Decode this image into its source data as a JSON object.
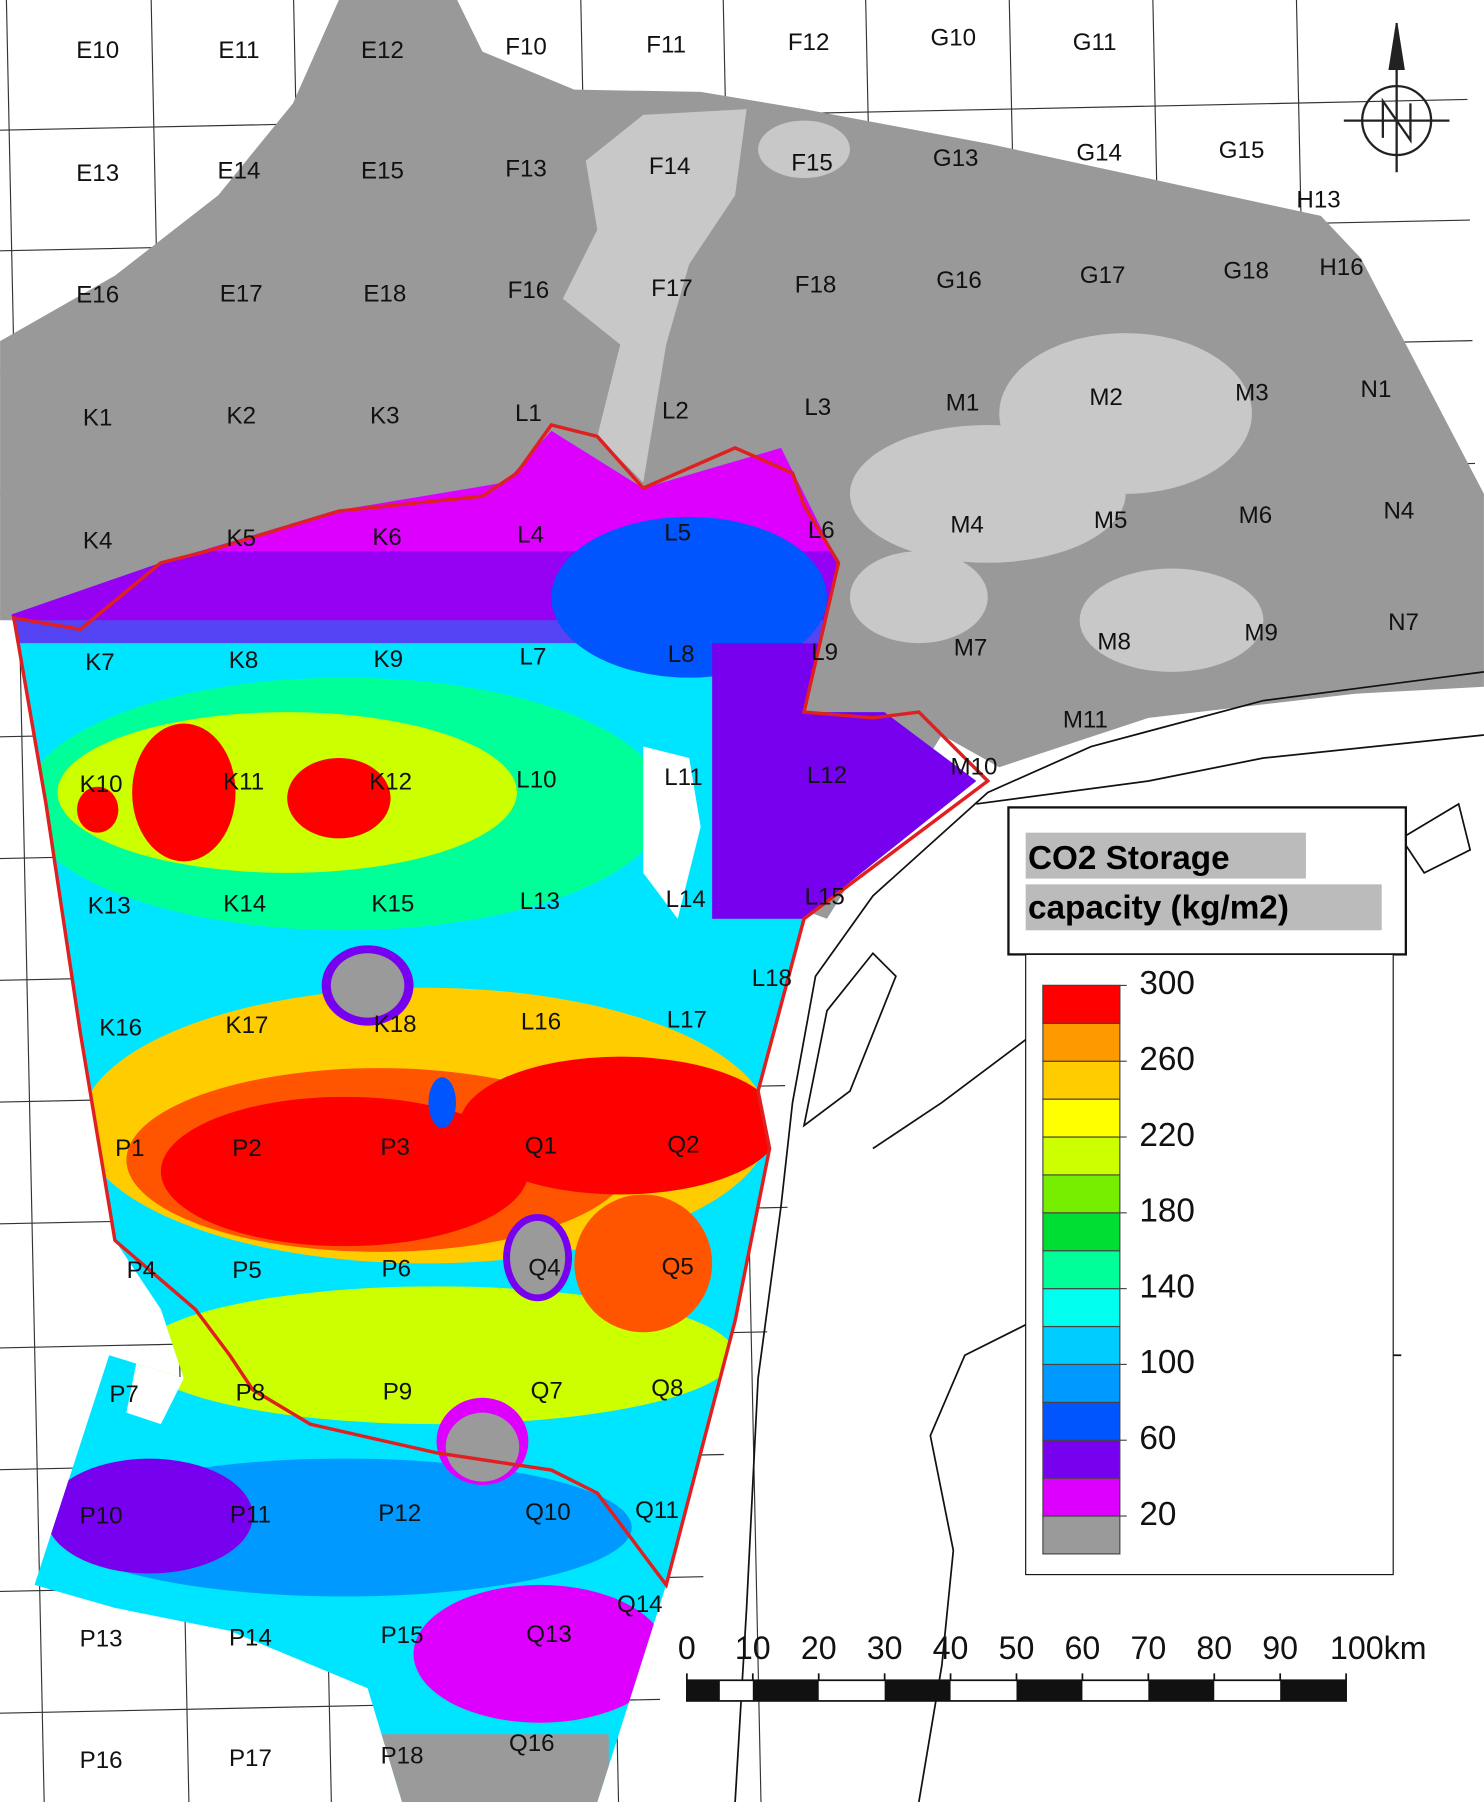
{
  "map": {
    "blocks": [
      "E10",
      "E11",
      "E12",
      "F10",
      "F11",
      "F12",
      "G10",
      "G11",
      "E13",
      "E14",
      "E15",
      "F13",
      "F14",
      "F15",
      "G13",
      "G14",
      "G15",
      "H13",
      "E16",
      "E17",
      "E18",
      "F16",
      "F17",
      "F18",
      "G16",
      "G17",
      "G18",
      "H16",
      "K1",
      "K2",
      "K3",
      "L1",
      "L2",
      "L3",
      "M1",
      "M2",
      "M3",
      "N1",
      "K4",
      "K5",
      "K6",
      "L4",
      "L5",
      "L6",
      "M4",
      "M5",
      "M6",
      "N4",
      "K7",
      "K8",
      "K9",
      "L7",
      "L8",
      "L9",
      "M7",
      "M8",
      "M9",
      "N7",
      "M11",
      "K10",
      "K11",
      "K12",
      "L10",
      "L11",
      "L12",
      "M10",
      "K13",
      "K14",
      "K15",
      "L13",
      "L14",
      "L15",
      "L18",
      "K16",
      "K17",
      "K18",
      "L16",
      "L17",
      "P1",
      "P2",
      "P3",
      "Q1",
      "Q2",
      "P4",
      "P5",
      "P6",
      "Q4",
      "Q5",
      "P7",
      "P8",
      "P9",
      "Q7",
      "Q8",
      "P10",
      "P11",
      "P12",
      "Q10",
      "Q11",
      "P13",
      "P14",
      "P15",
      "Q13",
      "Q14",
      "P16",
      "P17",
      "P18",
      "Q16"
    ],
    "legend": {
      "title_lines": [
        "CO2 Storage",
        "capacity (kg/m2)"
      ],
      "range": [
        0,
        300
      ],
      "bins": [
        "#9a9a9a",
        "#dd00ff",
        "#7700ee",
        "#0055ff",
        "#0099ff",
        "#00ccff",
        "#00ffee",
        "#00ff99",
        "#00dd33",
        "#77ee00",
        "#ccff00",
        "#ffff00",
        "#ffcc00",
        "#ff9900",
        "#ff5500"
      ],
      "top_color": "#ff0000",
      "ticks": [
        20,
        60,
        100,
        140,
        180,
        220,
        260,
        300
      ]
    },
    "scale_bar": {
      "range": [
        0,
        100
      ],
      "ticks": [
        0,
        10,
        20,
        30,
        40,
        50,
        60,
        70,
        80,
        90,
        {
          "value": 100,
          "label": "100km"
        }
      ]
    }
  }
}
